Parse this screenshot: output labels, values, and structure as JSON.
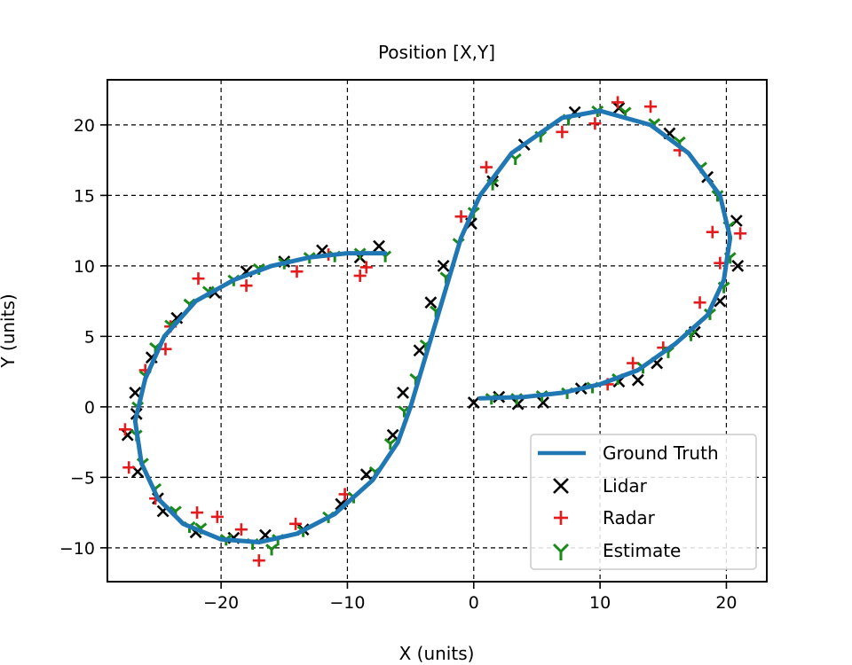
{
  "chart_data": {
    "type": "scatter",
    "title": "Position [X,Y]",
    "xlabel": "X (units)",
    "ylabel": "Y (units)",
    "xlim": [
      -29,
      23.2
    ],
    "ylim": [
      -12.4,
      23.2
    ],
    "xticks": [
      -20,
      -10,
      0,
      10,
      20
    ],
    "yticks": [
      -10,
      -5,
      0,
      5,
      10,
      15,
      20
    ],
    "xtick_labels": [
      "−20",
      "−10",
      "0",
      "10",
      "20"
    ],
    "ytick_labels": [
      "−10",
      "−5",
      "0",
      "5",
      "10",
      "15",
      "20"
    ],
    "grid": true,
    "legend_position": "lower-right",
    "series": [
      {
        "name": "Ground Truth",
        "kind": "line",
        "color": "#1f77b4",
        "points": [
          [
            -7,
            10.9
          ],
          [
            -10,
            10.9
          ],
          [
            -13,
            10.6
          ],
          [
            -16,
            10
          ],
          [
            -19,
            9
          ],
          [
            -22,
            7.5
          ],
          [
            -24.5,
            5
          ],
          [
            -26,
            2
          ],
          [
            -26.8,
            -1
          ],
          [
            -26.3,
            -4
          ],
          [
            -25,
            -6.5
          ],
          [
            -23,
            -8.3
          ],
          [
            -20,
            -9.4
          ],
          [
            -17,
            -9.6
          ],
          [
            -14,
            -9
          ],
          [
            -11,
            -7.6
          ],
          [
            -8,
            -5.2
          ],
          [
            -6,
            -2.5
          ],
          [
            -5,
            0
          ],
          [
            -4,
            3
          ],
          [
            -3,
            6
          ],
          [
            -2,
            9
          ],
          [
            -1,
            12
          ],
          [
            0.5,
            15
          ],
          [
            3,
            18
          ],
          [
            7,
            20.5
          ],
          [
            10,
            21
          ],
          [
            14,
            20
          ],
          [
            17,
            18
          ],
          [
            19.5,
            15
          ],
          [
            20.3,
            12
          ],
          [
            19.8,
            9
          ],
          [
            18.5,
            6.5
          ],
          [
            16,
            4.5
          ],
          [
            13,
            2.6
          ],
          [
            10,
            1.6
          ],
          [
            7,
            1
          ],
          [
            4,
            0.7
          ],
          [
            0.5,
            0.6
          ]
        ]
      },
      {
        "name": "Lidar",
        "kind": "x-marker",
        "color": "#000000",
        "points": [
          [
            -7.5,
            11.4
          ],
          [
            -9,
            10.6
          ],
          [
            -12,
            11.1
          ],
          [
            -15,
            10.3
          ],
          [
            -18,
            9.6
          ],
          [
            -20.5,
            8.1
          ],
          [
            -23.5,
            6.3
          ],
          [
            -25.5,
            3.5
          ],
          [
            -26.8,
            1
          ],
          [
            -27.4,
            -2
          ],
          [
            -26.6,
            -4.6
          ],
          [
            -24.6,
            -7.4
          ],
          [
            -22,
            -8.9
          ],
          [
            -19,
            -9.3
          ],
          [
            -16.5,
            -9.1
          ],
          [
            -13.5,
            -8.7
          ],
          [
            -10.5,
            -6.9
          ],
          [
            -8.5,
            -4.8
          ],
          [
            -6.4,
            -2
          ],
          [
            -5.6,
            1
          ],
          [
            -4.3,
            4
          ],
          [
            -3.4,
            7.4
          ],
          [
            -2.4,
            10
          ],
          [
            -0.2,
            13
          ],
          [
            1.5,
            16
          ],
          [
            4,
            18.6
          ],
          [
            8,
            20.9
          ],
          [
            11.5,
            21.2
          ],
          [
            15.5,
            19.4
          ],
          [
            18.5,
            16.3
          ],
          [
            20.8,
            13.2
          ],
          [
            20.9,
            10
          ],
          [
            19.5,
            7.5
          ],
          [
            17.5,
            5.3
          ],
          [
            14.5,
            3.1
          ],
          [
            11.5,
            1.8
          ],
          [
            8.5,
            1.3
          ],
          [
            5.5,
            0.3
          ],
          [
            2,
            0.7
          ],
          [
            0,
            0.3
          ],
          [
            3.5,
            0.2
          ],
          [
            13,
            1.9
          ],
          [
            -25,
            -6.5
          ],
          [
            -26.7,
            -0.5
          ]
        ]
      },
      {
        "name": "Radar",
        "kind": "plus-marker",
        "color": "#e41a1c",
        "points": [
          [
            -8.5,
            9.9
          ],
          [
            -11.5,
            10.8
          ],
          [
            -14,
            9.6
          ],
          [
            -18,
            8.6
          ],
          [
            -21.8,
            9.1
          ],
          [
            -24,
            5.7
          ],
          [
            -26,
            2.6
          ],
          [
            -27.6,
            -1.6
          ],
          [
            -27.3,
            -4.3
          ],
          [
            -25.2,
            -6.5
          ],
          [
            -21.9,
            -7.5
          ],
          [
            -20.3,
            -7.8
          ],
          [
            -18.4,
            -8.7
          ],
          [
            -17,
            -10.9
          ],
          [
            -14.1,
            -8.3
          ],
          [
            -10.2,
            -6.2
          ],
          [
            -1,
            13.5
          ],
          [
            1,
            17
          ],
          [
            7,
            19.5
          ],
          [
            9.6,
            20.1
          ],
          [
            11.4,
            21.6
          ],
          [
            14,
            21.3
          ],
          [
            16.3,
            18.2
          ],
          [
            18.9,
            12.4
          ],
          [
            21.1,
            12.3
          ],
          [
            19.5,
            10.2
          ],
          [
            17.9,
            7.4
          ],
          [
            15,
            4.2
          ],
          [
            12.6,
            3.1
          ],
          [
            10.6,
            1.6
          ],
          [
            -9,
            9.3
          ],
          [
            -24.4,
            4.1
          ]
        ]
      },
      {
        "name": "Estimate",
        "kind": "tri-marker",
        "color": "#1a8a1a",
        "points": [
          [
            -7,
            10.7
          ],
          [
            -9,
            10.9
          ],
          [
            -11,
            10.7
          ],
          [
            -13,
            10.6
          ],
          [
            -15,
            10.2
          ],
          [
            -17,
            9.8
          ],
          [
            -19,
            9
          ],
          [
            -21,
            8.2
          ],
          [
            -22.5,
            7.3
          ],
          [
            -24,
            5.8
          ],
          [
            -25.2,
            4.2
          ],
          [
            -26,
            2.2
          ],
          [
            -26.6,
            0
          ],
          [
            -26.7,
            -2
          ],
          [
            -26.2,
            -4
          ],
          [
            -25.2,
            -5.8
          ],
          [
            -23.6,
            -7.4
          ],
          [
            -21.6,
            -8.6
          ],
          [
            -19.6,
            -9.4
          ],
          [
            -17.5,
            -9.7
          ],
          [
            -15.5,
            -9.4
          ],
          [
            -13.5,
            -8.8
          ],
          [
            -11.5,
            -7.8
          ],
          [
            -9.5,
            -6.4
          ],
          [
            -7.8,
            -4.6
          ],
          [
            -6.6,
            -2.6
          ],
          [
            -5.5,
            -0.3
          ],
          [
            -4.6,
            2
          ],
          [
            -3.8,
            4.4
          ],
          [
            -3,
            6.8
          ],
          [
            -2.2,
            9.2
          ],
          [
            -1.2,
            11.6
          ],
          [
            0,
            13.8
          ],
          [
            1.5,
            15.8
          ],
          [
            3.3,
            17.6
          ],
          [
            5.3,
            19.2
          ],
          [
            7.5,
            20.4
          ],
          [
            9.8,
            21
          ],
          [
            12,
            20.9
          ],
          [
            14.3,
            20.1
          ],
          [
            16.3,
            18.8
          ],
          [
            18,
            17
          ],
          [
            19.3,
            15
          ],
          [
            20.2,
            12.8
          ],
          [
            20.3,
            10.6
          ],
          [
            19.8,
            8.5
          ],
          [
            18.7,
            6.6
          ],
          [
            17.2,
            5.1
          ],
          [
            15.4,
            3.9
          ],
          [
            13.4,
            2.8
          ],
          [
            11.4,
            2
          ],
          [
            9.4,
            1.4
          ],
          [
            7.4,
            1
          ],
          [
            5.4,
            0.8
          ],
          [
            3.4,
            0.6
          ],
          [
            1.4,
            0.6
          ],
          [
            -16,
            -10.1
          ],
          [
            -22.5,
            -8.5
          ]
        ]
      }
    ]
  }
}
